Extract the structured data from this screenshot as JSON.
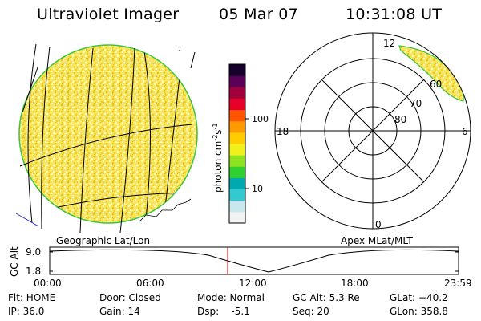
{
  "header": {
    "instrument": "Ultraviolet Imager",
    "date": "05 Mar 07",
    "time": "10:31:08 UT"
  },
  "left_panel": {
    "caption": "Geographic Lat/Lon"
  },
  "right_panel": {
    "caption": "Apex MLat/MLT",
    "mlt_labels": [
      "12",
      "18",
      "6",
      "0"
    ],
    "mlat_labels": [
      "60",
      "70",
      "80"
    ]
  },
  "colorbar": {
    "unit_label": "photon cm",
    "unit_sup1": "-2",
    "unit_mid": "s",
    "unit_sup2": "-1",
    "ticks": [
      "100",
      "10"
    ],
    "scale": "log",
    "colors": [
      "#f2f2f2",
      "#c8e8ee",
      "#33c9cf",
      "#00a8b0",
      "#2fd02f",
      "#8fe21f",
      "#f0f01a",
      "#ffcc00",
      "#ff9900",
      "#ff5500",
      "#e8002a",
      "#a0003c",
      "#5a0058",
      "#14002a"
    ]
  },
  "altitude_plot": {
    "ylabel": "GC Alt",
    "y_ticks": [
      "9.0",
      "1.8"
    ],
    "x_ticks": [
      "00:00",
      "06:00",
      "12:00",
      "18:00",
      "23:59"
    ],
    "current_time_color": "#cc0000"
  },
  "info": {
    "flt": "Flt: HOME",
    "ip": "IP: 36.0",
    "door": "Door: Closed",
    "gain": "Gain: 14",
    "mode": "Mode: Normal",
    "dsp": "Dsp:    -5.1",
    "gc_alt": "GC Alt: 5.3 Re",
    "seq": "Seq: 20",
    "glat": "GLat: −40.2",
    "glon": "GLon: 358.8"
  },
  "colors": {
    "disk_fill": "#f4e55a",
    "disk_edge": "#3cc43c",
    "grid": "#000000",
    "coast": "#2a2ad0"
  }
}
